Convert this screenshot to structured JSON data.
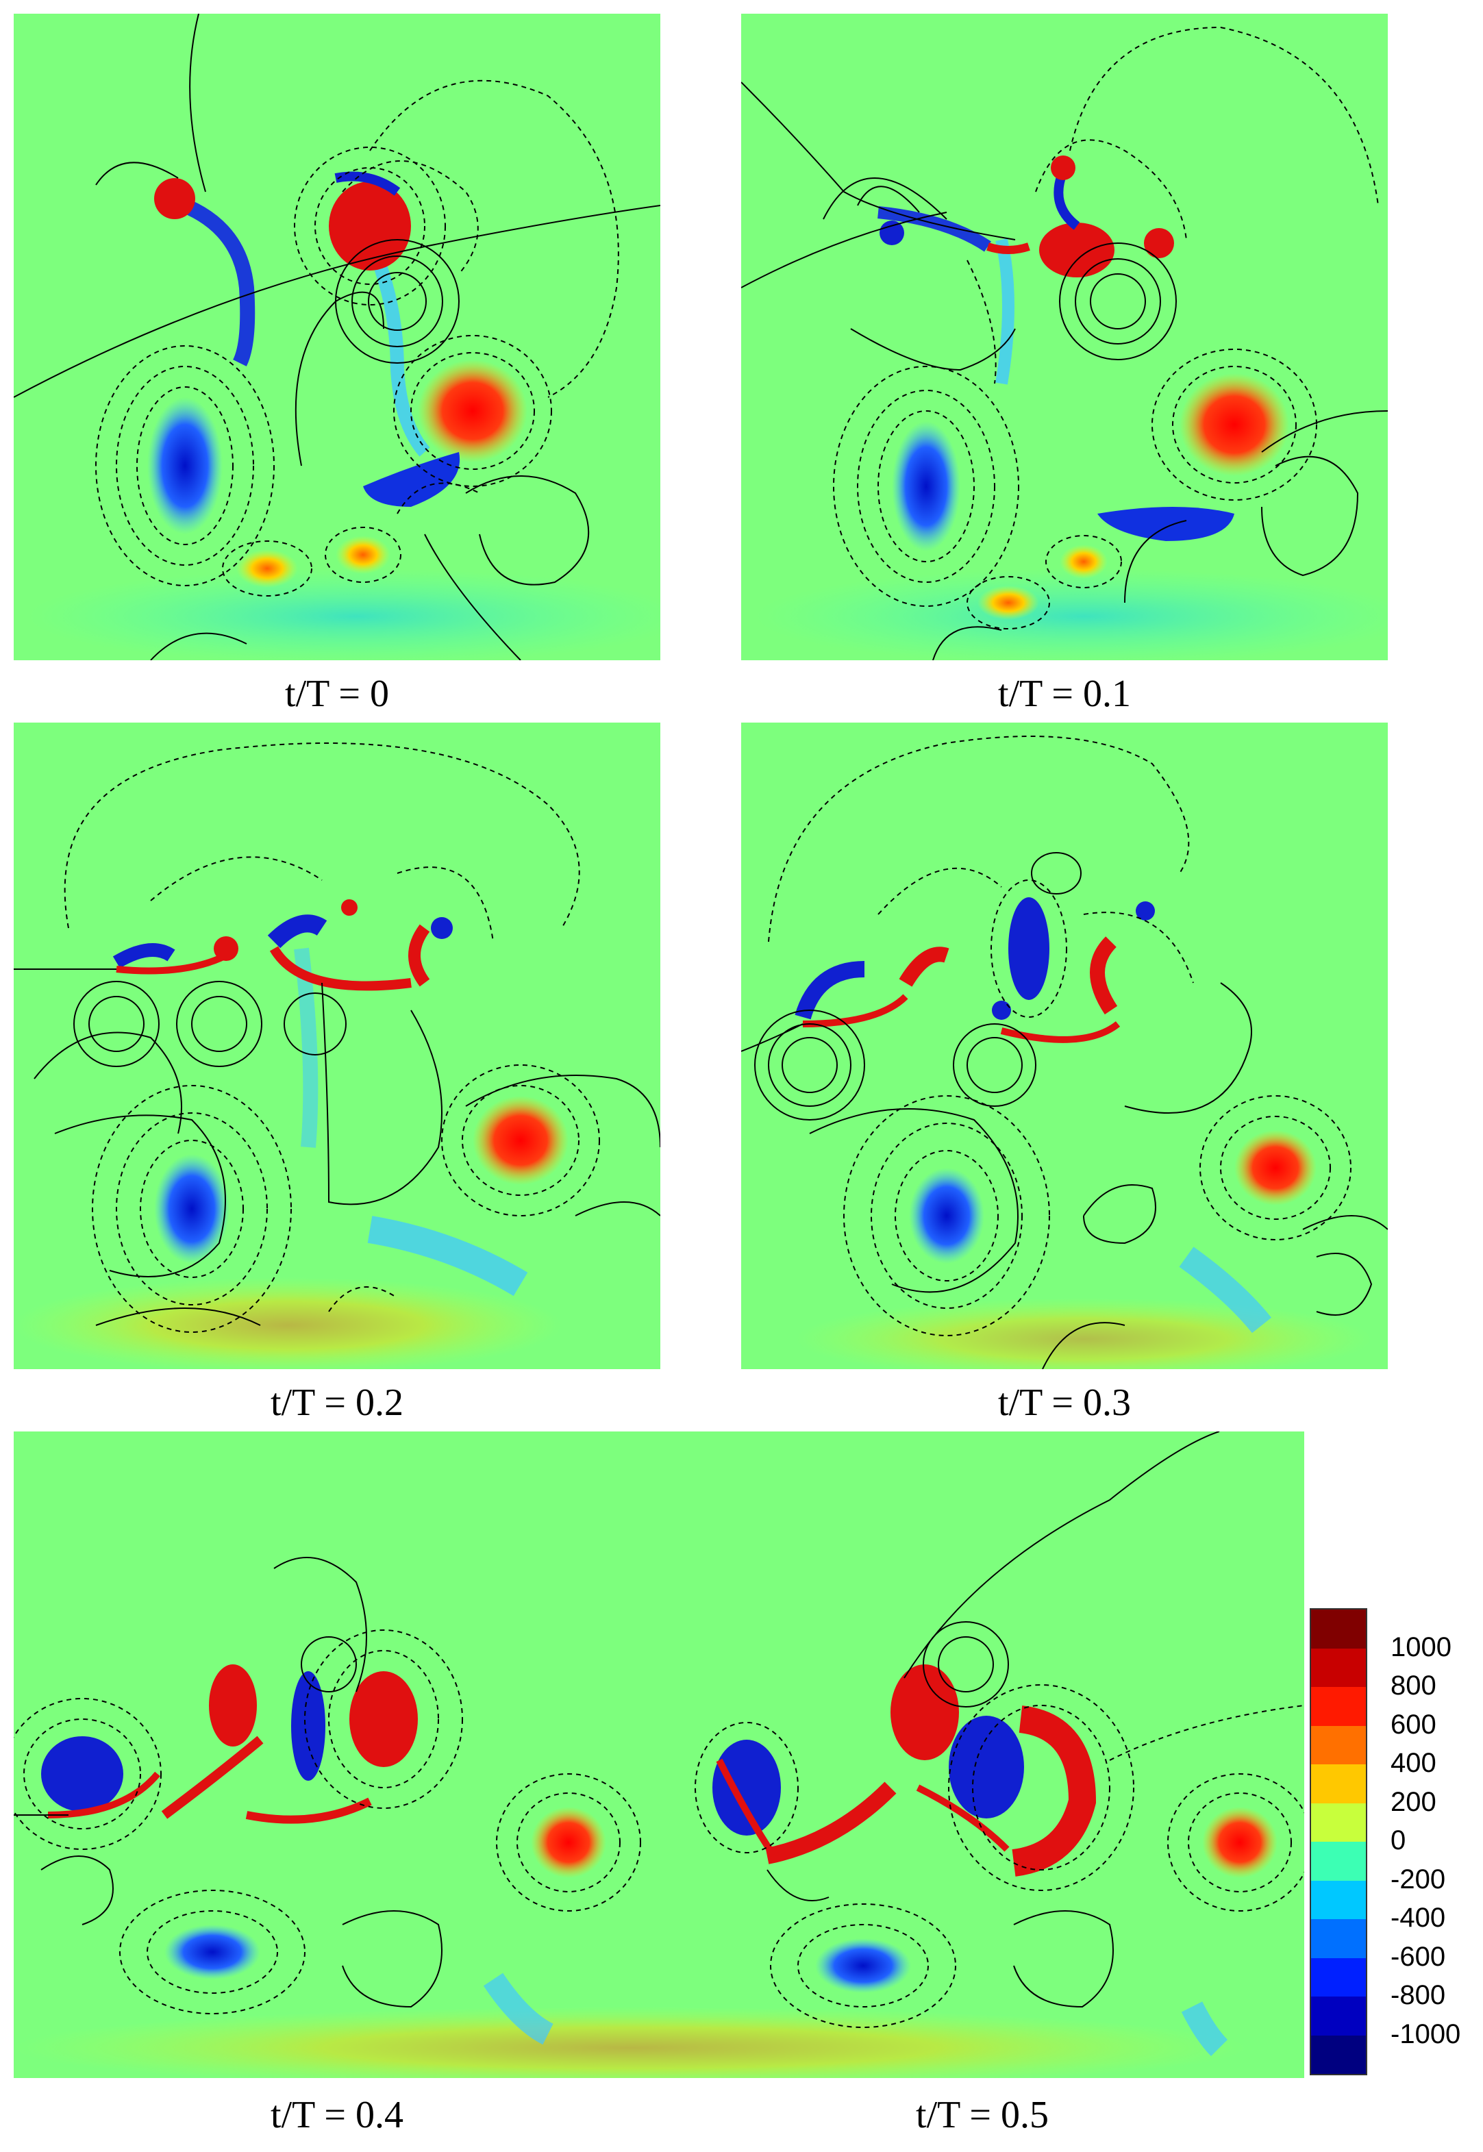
{
  "captions": [
    "t/T = 0",
    "t/T = 0.1",
    "t/T = 0.2",
    "t/T = 0.3",
    "t/T = 0.4",
    "t/T = 0.5"
  ],
  "colorbar": {
    "labels": [
      "1000",
      "800",
      "600",
      "400",
      "200",
      "0",
      "-200",
      "-400",
      "-600",
      "-800",
      "-1000"
    ],
    "colors": [
      "#800000",
      "#c80000",
      "#ff1a00",
      "#ff7000",
      "#ffc800",
      "#c8ff3c",
      "#3cffb4",
      "#00c8ff",
      "#0070ff",
      "#0020ff",
      "#0000c0",
      "#000080"
    ]
  },
  "colors": {
    "background_field": "#7dff7d",
    "positive_vortex": "#e01010",
    "negative_vortex": "#1020d0",
    "weak_positive": "#ffd000",
    "weak_negative": "#40c8ff",
    "contour_line": "#000000"
  }
}
